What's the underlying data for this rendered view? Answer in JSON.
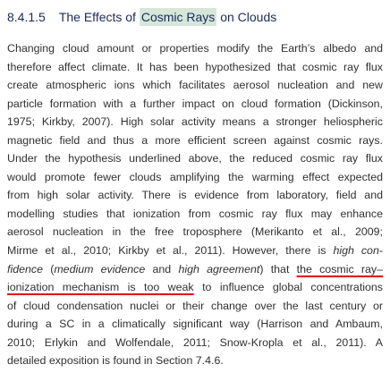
{
  "section": {
    "number": "8.4.1.5",
    "title_pre": "The Effects of",
    "title_highlight": "Cosmic Rays",
    "title_post": "on Clouds"
  },
  "lines": {
    "l1": "Changing cloud amount or properties modify the Earth’s albedo and",
    "l2": "therefore affect climate. It has been hypothesized that cosmic ray flux",
    "l3": "create atmospheric ions which facilitates aerosol nucleation and new",
    "l4": "particle formation with a further impact on cloud formation (Dickinson,",
    "l5": "1975; Kirkby, 2007). High solar activity means a stronger heliospheric",
    "l6": "magnetic field and thus a more efficient screen against cosmic rays.",
    "l7": "Under the hypothesis underlined above, the reduced cosmic ray flux",
    "l8": "would promote fewer clouds amplifying the warming effect expected",
    "l9": "from high solar activity. There is evidence from laboratory, field and",
    "l10": "modelling studies that ionization from cosmic ray flux may enhance",
    "l11": "aerosol nucleation in the free troposphere (Merikanto et al., 2009;",
    "l12": "Mirme et al., 2010; Kirkby et al., 2011). However, there is",
    "l12_em": "high con-",
    "l13_em1": "fidence",
    "l13_a": "(",
    "l13_em2": "medium evidence",
    "l13_b": "and",
    "l13_em3": "high agreement",
    "l13_c": ") that",
    "l13_u": "the cosmic ray–",
    "l14_u": "ionization mechanism is too weak",
    "l14_rest": "to influence global concentrations",
    "l15": "of cloud condensation nuclei or their change over the last century or",
    "l16": "during a SC in a climatically significant way (Harrison and Ambaum,",
    "l17": "2010; Erlykin and Wolfendale, 2011; Snow-Kropla et al., 2011). A",
    "l18": "detailed exposition is found in Section 7.4.6."
  },
  "colors": {
    "heading_text": "#1a2a5c",
    "highlight": "#d5e7d9",
    "body_text": "#303030",
    "underline": "#e0001a"
  }
}
